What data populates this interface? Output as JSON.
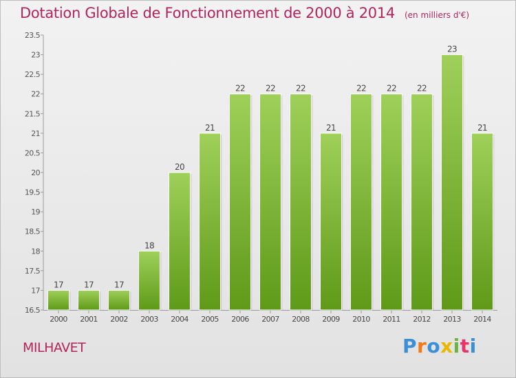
{
  "header": {
    "title": "Dotation Globale de Fonctionnement de 2000 à 2014",
    "subtitle": "(en milliers d'€)"
  },
  "footer": {
    "municipality": "MILHAVET",
    "logo_text": "Proxiti"
  },
  "colors": {
    "accent": "#b2245c",
    "bar_top": "#9fd05a",
    "bar_bottom": "#5e9a18"
  },
  "chart_data": {
    "type": "bar",
    "title": "Dotation Globale de Fonctionnement de 2000 à 2014",
    "subtitle": "(en milliers d'€)",
    "categories": [
      "2000",
      "2001",
      "2002",
      "2003",
      "2004",
      "2005",
      "2006",
      "2007",
      "2008",
      "2009",
      "2010",
      "2011",
      "2012",
      "2013",
      "2014"
    ],
    "values": [
      17,
      17,
      17,
      18,
      20,
      21,
      22,
      22,
      22,
      21,
      22,
      22,
      22,
      23,
      21
    ],
    "data_labels": [
      "17",
      "17",
      "17",
      "18",
      "20",
      "21",
      "22",
      "22",
      "22",
      "21",
      "22",
      "22",
      "22",
      "23",
      "21"
    ],
    "ylim": [
      16.5,
      23.5
    ],
    "yticks": [
      "16.5",
      "17",
      "17.5",
      "18",
      "18.5",
      "19",
      "19.5",
      "20",
      "20.5",
      "21",
      "21.5",
      "22",
      "22.5",
      "23",
      "23.5"
    ],
    "xlabel": "",
    "ylabel": "",
    "grid": false,
    "legend": "none"
  }
}
